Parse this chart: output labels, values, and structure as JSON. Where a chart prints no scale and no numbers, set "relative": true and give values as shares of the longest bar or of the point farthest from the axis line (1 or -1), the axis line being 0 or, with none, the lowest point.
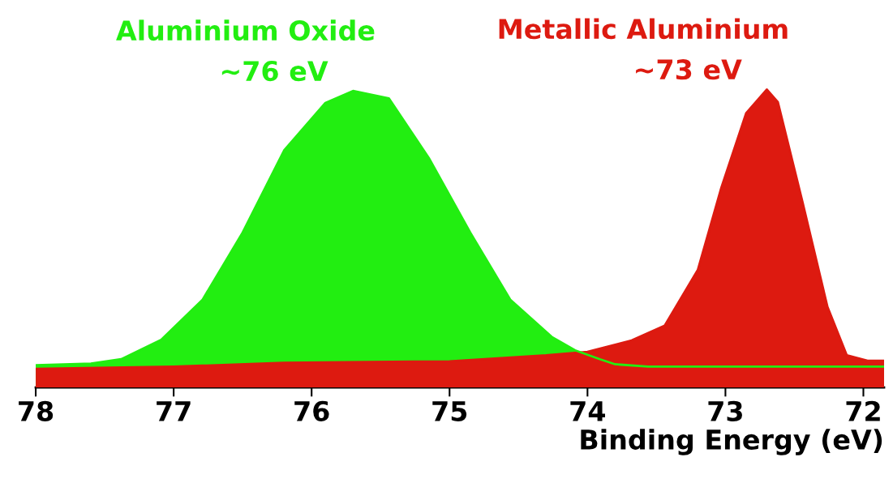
{
  "chart_data": {
    "type": "area",
    "relative": true,
    "xlabel": "Binding Energy (eV)",
    "xlim": [
      78,
      71.85
    ],
    "xticks": [
      78,
      77,
      76,
      75,
      74,
      73,
      72
    ],
    "grid": false,
    "legend": false,
    "series": [
      {
        "name": "Aluminium Oxide",
        "color": "#22ee11",
        "x": [
          78,
          77.6,
          77.38,
          77.09,
          76.79,
          76.5,
          76.2,
          75.9,
          75.7,
          75.44,
          75.15,
          74.85,
          74.56,
          74.26,
          74.09,
          73.91,
          73.8,
          73.56,
          71.85
        ],
        "values": [
          0.075,
          0.08,
          0.095,
          0.16,
          0.295,
          0.52,
          0.795,
          0.955,
          0.995,
          0.97,
          0.77,
          0.52,
          0.295,
          0.17,
          0.125,
          0.095,
          0.078,
          0.07,
          0.07
        ]
      },
      {
        "name": "Metallic Aluminium",
        "color": "#dd1a10",
        "x": [
          78,
          77,
          76.2,
          75,
          74.3,
          74.0,
          73.68,
          73.44,
          73.2,
          73.03,
          72.85,
          72.7,
          72.62,
          72.44,
          72.26,
          72.12,
          71.97,
          71.85
        ],
        "values": [
          0.0625,
          0.07,
          0.083,
          0.088,
          0.108,
          0.12,
          0.158,
          0.208,
          0.395,
          0.67,
          0.92,
          1,
          0.958,
          0.62,
          0.27,
          0.108,
          0.09,
          0.09
        ]
      }
    ],
    "annotations": [
      {
        "text": "~76 eV",
        "x": 75.7,
        "y": 0.995
      },
      {
        "text": "~73 eV",
        "x": 72.7,
        "y": 1
      }
    ]
  }
}
